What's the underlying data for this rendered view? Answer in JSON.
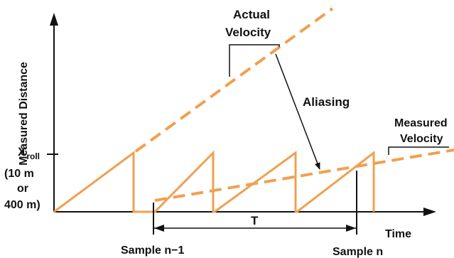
{
  "labels": {
    "y_axis": "Measured Distance",
    "x_axis": "Time",
    "x_roll_main": "X",
    "x_roll_sub": "roll",
    "x_roll_note_1": "(10 m",
    "x_roll_note_2": "or",
    "x_roll_note_3": "400 m)",
    "actual_velocity_1": "Actual",
    "actual_velocity_2": "Velocity",
    "aliasing": "Aliasing",
    "measured_velocity_1": "Measured",
    "measured_velocity_2": "Velocity",
    "period": "T",
    "sample_prev": "Sample n−1",
    "sample_n": "Sample n"
  },
  "colors": {
    "orange": "#F0A050",
    "ink": "#111111"
  }
}
